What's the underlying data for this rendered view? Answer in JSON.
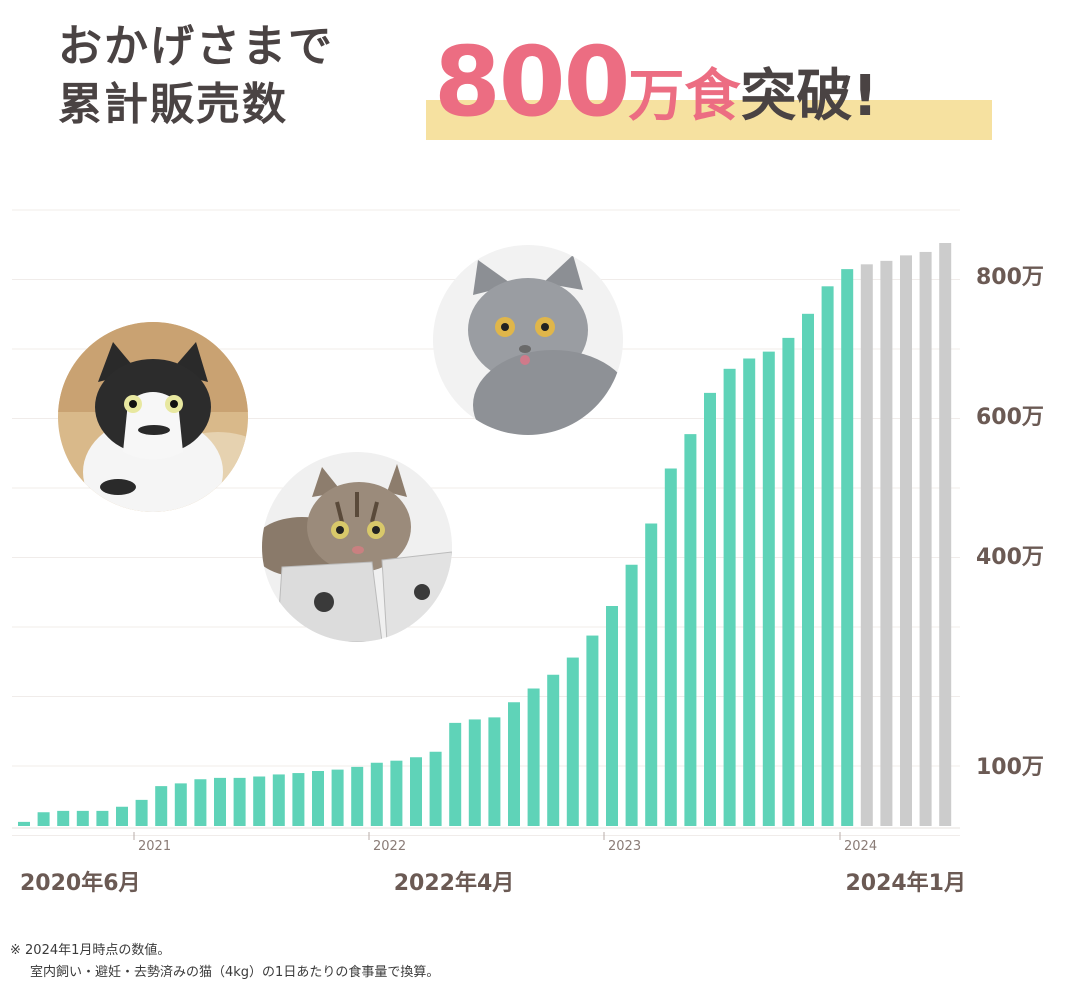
{
  "headline": {
    "line1": "おかげさまで",
    "line2": "累計販売数",
    "number": "800",
    "unit": "万食",
    "suffix": "突破!"
  },
  "chart_data": {
    "type": "bar",
    "ylabels": [
      "800万",
      "600万",
      "400万",
      "100万"
    ],
    "year_ticks": [
      "2021",
      "2022",
      "2023",
      "2024"
    ],
    "date_labels": [
      "2020年6月",
      "2022年4月",
      "2024年1月"
    ],
    "colors": {
      "actual": "#5fd3b8",
      "projection": "#cccccc"
    },
    "series": [
      {
        "values": [
          0.06,
          0.2,
          0.22,
          0.22,
          0.22,
          0.28,
          0.38,
          0.58,
          0.62,
          0.68,
          0.7,
          0.7,
          0.72,
          0.75,
          0.77,
          0.8,
          0.82,
          0.86,
          0.92,
          0.95,
          1.0,
          1.08,
          1.5,
          1.55,
          1.58,
          1.8,
          2.0,
          2.2,
          2.45,
          2.77,
          3.2,
          3.8,
          4.4,
          5.2,
          5.7,
          6.3,
          6.65,
          6.8,
          6.9,
          7.1,
          7.45,
          7.85,
          8.1
        ]
      },
      {
        "values": [
          8.17,
          8.22,
          8.3,
          8.35,
          8.48
        ]
      }
    ]
  },
  "photos": [
    "cat-photo-black-white",
    "cat-photo-tabby-with-bags",
    "cat-photo-gray"
  ],
  "footnote": {
    "line1": "※ 2024年1月時点の数値。",
    "line2": "室内飼い・避妊・去勢済みの猫（4kg）の1日あたりの食事量で換算。"
  }
}
